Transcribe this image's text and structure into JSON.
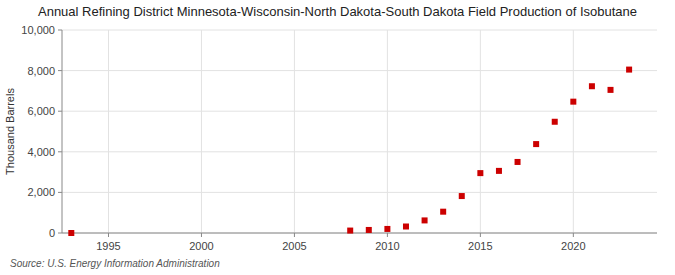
{
  "chart_data": {
    "type": "scatter",
    "title": "Annual Refining District Minnesota-Wisconsin-North Dakota-South Dakota Field Production of Isobutane",
    "y_label": "Thousand Barrels",
    "source": "Source: U.S. Energy Information Administration",
    "x": [
      1993,
      2008,
      2009,
      2010,
      2011,
      2012,
      2013,
      2014,
      2015,
      2016,
      2017,
      2018,
      2019,
      2020,
      2021,
      2022,
      2023
    ],
    "values": [
      0,
      120,
      150,
      200,
      320,
      620,
      1050,
      1820,
      2950,
      3060,
      3500,
      4380,
      5480,
      6470,
      7230,
      7050,
      8050
    ],
    "color": "#cc0000",
    "marker": "square",
    "xlim": [
      1992.5,
      2024.5
    ],
    "xticks": [
      1995,
      2000,
      2005,
      2010,
      2015,
      2020
    ],
    "ylim": [
      0,
      10000
    ],
    "yticks": [
      0,
      {
        "value": 2000,
        "label": "2,000"
      },
      {
        "value": 4000,
        "label": "4,000"
      },
      {
        "value": 6000,
        "label": "6,000"
      },
      {
        "value": 8000,
        "label": "8,000"
      },
      {
        "value": 10000,
        "label": "10,000"
      }
    ],
    "grid": true
  }
}
